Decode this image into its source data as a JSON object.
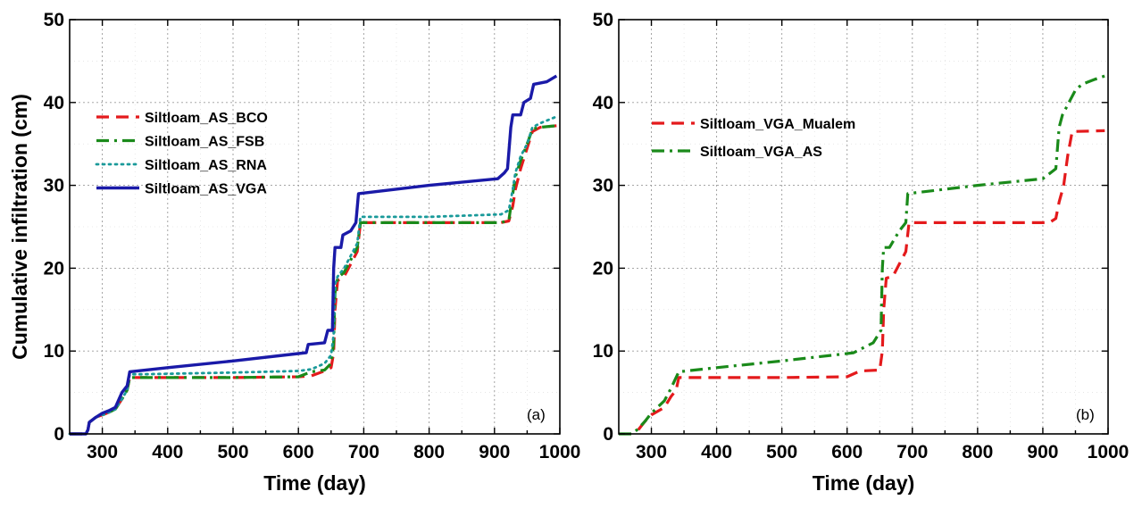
{
  "chart_data": [
    {
      "type": "line",
      "panel_label": "(a)",
      "xlabel": "Time (day)",
      "ylabel": "Cumulative infiltration (cm)",
      "xlim": [
        250,
        1000
      ],
      "ylim": [
        0,
        50
      ],
      "xticks": [
        300,
        400,
        500,
        600,
        700,
        800,
        900,
        1000
      ],
      "yticks": [
        0,
        10,
        20,
        30,
        40,
        50
      ],
      "grid": true,
      "legend_position": "upper-left",
      "series": [
        {
          "name": "Siltloam_AS_BCO",
          "color": "#e41a1c",
          "style": "dashed",
          "points": [
            [
              250,
              0
            ],
            [
              275,
              0
            ],
            [
              278,
              0.5
            ],
            [
              280,
              1.4
            ],
            [
              290,
              2.0
            ],
            [
              300,
              2.3
            ],
            [
              310,
              2.6
            ],
            [
              320,
              3.0
            ],
            [
              330,
              4.2
            ],
            [
              338,
              5.3
            ],
            [
              342,
              6.8
            ],
            [
              360,
              6.8
            ],
            [
              500,
              6.8
            ],
            [
              600,
              6.9
            ],
            [
              620,
              7.0
            ],
            [
              640,
              7.6
            ],
            [
              650,
              8.0
            ],
            [
              654,
              9.8
            ],
            [
              656,
              15.0
            ],
            [
              660,
              18.5
            ],
            [
              670,
              19.0
            ],
            [
              680,
              20.5
            ],
            [
              690,
              22.0
            ],
            [
              695,
              25.5
            ],
            [
              800,
              25.5
            ],
            [
              910,
              25.5
            ],
            [
              922,
              25.7
            ],
            [
              928,
              27.5
            ],
            [
              932,
              29.5
            ],
            [
              940,
              32.0
            ],
            [
              950,
              34.5
            ],
            [
              958,
              36.5
            ],
            [
              970,
              37.0
            ],
            [
              995,
              37.2
            ]
          ]
        },
        {
          "name": "Siltloam_AS_FSB",
          "color": "#1a8a1a",
          "style": "dash-dot",
          "points": [
            [
              250,
              0
            ],
            [
              275,
              0
            ],
            [
              278,
              0.5
            ],
            [
              280,
              1.4
            ],
            [
              290,
              2.0
            ],
            [
              300,
              2.3
            ],
            [
              310,
              2.6
            ],
            [
              320,
              3.0
            ],
            [
              330,
              4.2
            ],
            [
              338,
              5.3
            ],
            [
              342,
              6.8
            ],
            [
              360,
              6.8
            ],
            [
              500,
              6.8
            ],
            [
              600,
              6.9
            ],
            [
              620,
              7.5
            ],
            [
              640,
              7.7
            ],
            [
              650,
              8.5
            ],
            [
              654,
              11.0
            ],
            [
              656,
              17.0
            ],
            [
              660,
              18.8
            ],
            [
              670,
              19.5
            ],
            [
              680,
              21.0
            ],
            [
              690,
              22.5
            ],
            [
              695,
              25.5
            ],
            [
              800,
              25.5
            ],
            [
              910,
              25.5
            ],
            [
              922,
              25.8
            ],
            [
              928,
              29.0
            ],
            [
              932,
              31.0
            ],
            [
              940,
              33.0
            ],
            [
              950,
              35.0
            ],
            [
              958,
              36.8
            ],
            [
              970,
              37.0
            ],
            [
              995,
              37.2
            ]
          ]
        },
        {
          "name": "Siltloam_AS_RNA",
          "color": "#1a9a9a",
          "style": "dotted",
          "points": [
            [
              250,
              0
            ],
            [
              275,
              0
            ],
            [
              278,
              0.5
            ],
            [
              280,
              1.4
            ],
            [
              290,
              2.0
            ],
            [
              300,
              2.3
            ],
            [
              310,
              2.6
            ],
            [
              320,
              3.0
            ],
            [
              330,
              4.2
            ],
            [
              338,
              5.3
            ],
            [
              342,
              7.2
            ],
            [
              360,
              7.2
            ],
            [
              500,
              7.4
            ],
            [
              600,
              7.6
            ],
            [
              620,
              7.8
            ],
            [
              640,
              8.5
            ],
            [
              650,
              9.5
            ],
            [
              654,
              12.0
            ],
            [
              656,
              18.0
            ],
            [
              660,
              19.0
            ],
            [
              670,
              20.0
            ],
            [
              680,
              21.5
            ],
            [
              690,
              23.0
            ],
            [
              695,
              26.2
            ],
            [
              800,
              26.2
            ],
            [
              910,
              26.5
            ],
            [
              922,
              27.0
            ],
            [
              928,
              29.5
            ],
            [
              932,
              31.5
            ],
            [
              940,
              33.5
            ],
            [
              950,
              35.0
            ],
            [
              958,
              37.0
            ],
            [
              970,
              37.5
            ],
            [
              995,
              38.3
            ]
          ]
        },
        {
          "name": "Siltloam_AS_VGA",
          "color": "#1a1aa8",
          "style": "solid",
          "points": [
            [
              250,
              0
            ],
            [
              275,
              0
            ],
            [
              278,
              0.5
            ],
            [
              280,
              1.4
            ],
            [
              290,
              2.0
            ],
            [
              300,
              2.5
            ],
            [
              310,
              2.8
            ],
            [
              320,
              3.2
            ],
            [
              330,
              5.0
            ],
            [
              338,
              5.8
            ],
            [
              342,
              7.5
            ],
            [
              400,
              8.0
            ],
            [
              500,
              8.8
            ],
            [
              600,
              9.7
            ],
            [
              612,
              9.8
            ],
            [
              615,
              10.8
            ],
            [
              640,
              11.0
            ],
            [
              645,
              12.5
            ],
            [
              652,
              12.5
            ],
            [
              654,
              20.0
            ],
            [
              656,
              22.5
            ],
            [
              665,
              22.5
            ],
            [
              668,
              24.0
            ],
            [
              680,
              24.5
            ],
            [
              688,
              25.5
            ],
            [
              692,
              29.0
            ],
            [
              800,
              30.0
            ],
            [
              905,
              30.8
            ],
            [
              915,
              31.5
            ],
            [
              920,
              32.0
            ],
            [
              925,
              37.0
            ],
            [
              928,
              38.5
            ],
            [
              940,
              38.5
            ],
            [
              945,
              40.0
            ],
            [
              955,
              40.5
            ],
            [
              960,
              42.2
            ],
            [
              980,
              42.5
            ],
            [
              995,
              43.2
            ]
          ]
        }
      ]
    },
    {
      "type": "line",
      "panel_label": "(b)",
      "xlabel": "Time (day)",
      "ylabel": "",
      "xlim": [
        250,
        1000
      ],
      "ylim": [
        0,
        50
      ],
      "xticks": [
        300,
        400,
        500,
        600,
        700,
        800,
        900,
        1000
      ],
      "yticks": [
        0,
        10,
        20,
        30,
        40,
        50
      ],
      "grid": true,
      "legend_position": "upper-left",
      "series": [
        {
          "name": "Siltloam_VGA_Mualem",
          "color": "#e41a1c",
          "style": "dashed",
          "points": [
            [
              280,
              0.5
            ],
            [
              290,
              1.5
            ],
            [
              300,
              2.3
            ],
            [
              320,
              3.2
            ],
            [
              330,
              4.5
            ],
            [
              338,
              5.3
            ],
            [
              342,
              6.8
            ],
            [
              360,
              6.8
            ],
            [
              500,
              6.8
            ],
            [
              600,
              6.9
            ],
            [
              620,
              7.6
            ],
            [
              650,
              7.7
            ],
            [
              654,
              10.0
            ],
            [
              656,
              15.0
            ],
            [
              660,
              18.8
            ],
            [
              670,
              19.0
            ],
            [
              680,
              20.5
            ],
            [
              690,
              22.0
            ],
            [
              695,
              25.5
            ],
            [
              800,
              25.5
            ],
            [
              910,
              25.5
            ],
            [
              920,
              26.0
            ],
            [
              925,
              28.0
            ],
            [
              932,
              30.0
            ],
            [
              938,
              33.5
            ],
            [
              945,
              36.5
            ],
            [
              995,
              36.6
            ]
          ]
        },
        {
          "name": "Siltloam_VGA_AS",
          "color": "#1a8a1a",
          "style": "dash-dot",
          "points": [
            [
              250,
              0
            ],
            [
              270,
              0
            ],
            [
              278,
              0.5
            ],
            [
              290,
              1.5
            ],
            [
              300,
              2.5
            ],
            [
              320,
              4.0
            ],
            [
              330,
              5.5
            ],
            [
              342,
              7.5
            ],
            [
              400,
              8.0
            ],
            [
              500,
              8.8
            ],
            [
              600,
              9.7
            ],
            [
              610,
              9.8
            ],
            [
              615,
              10.0
            ],
            [
              640,
              11.0
            ],
            [
              652,
              12.5
            ],
            [
              654,
              20.0
            ],
            [
              656,
              22.5
            ],
            [
              665,
              22.5
            ],
            [
              680,
              24.5
            ],
            [
              690,
              25.5
            ],
            [
              693,
              29.0
            ],
            [
              800,
              30.0
            ],
            [
              900,
              30.8
            ],
            [
              920,
              32.0
            ],
            [
              925,
              37.0
            ],
            [
              930,
              38.5
            ],
            [
              940,
              40.0
            ],
            [
              950,
              41.5
            ],
            [
              960,
              42.2
            ],
            [
              980,
              42.8
            ],
            [
              995,
              43.2
            ]
          ]
        }
      ]
    }
  ]
}
